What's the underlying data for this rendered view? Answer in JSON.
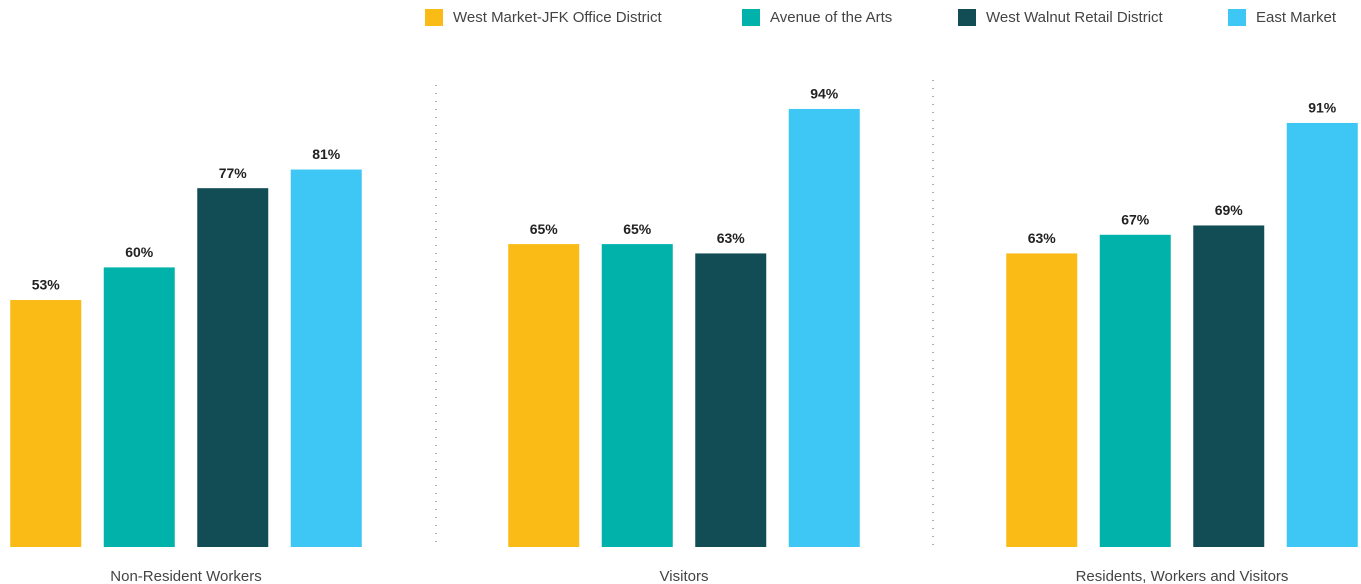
{
  "chart_data": {
    "type": "bar",
    "categories": [
      "Non-Resident Workers",
      "Visitors",
      "Residents, Workers and Visitors"
    ],
    "series": [
      {
        "name": "West Market-JFK Office District",
        "color": "#fbbb16",
        "values": [
          53,
          65,
          63
        ],
        "value_labels": [
          "53%",
          "65%",
          "63%"
        ]
      },
      {
        "name": "Avenue of the Arts",
        "color": "#00b2a9",
        "values": [
          60,
          65,
          67
        ],
        "value_labels": [
          "60%",
          "65%",
          "67%"
        ]
      },
      {
        "name": "West Walnut Retail District",
        "color": "#124d55",
        "values": [
          77,
          63,
          69
        ],
        "value_labels": [
          "77%",
          "63%",
          "69%"
        ]
      },
      {
        "name": "East Market",
        "color": "#3ec6f4",
        "values": [
          81,
          94,
          91
        ],
        "value_labels": [
          "81%",
          "94%",
          "91%"
        ]
      }
    ]
  }
}
